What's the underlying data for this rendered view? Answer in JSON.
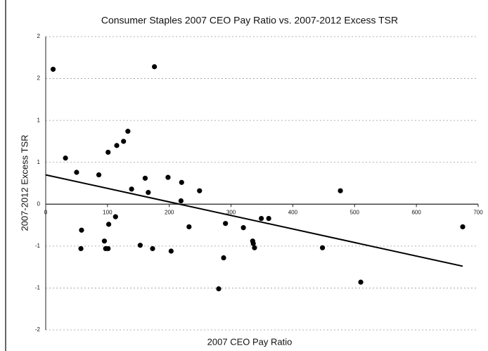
{
  "chart_data": {
    "type": "scatter",
    "title": "Consumer Staples 2007 CEO Pay Ratio vs. 2007-2012 Excess TSR",
    "x_label": "2007 CEO Pay Ratio",
    "y_label": "2007-2012 Excess TSR",
    "color": "#000000",
    "grid": true,
    "x": [
      12,
      176,
      32,
      50,
      101,
      115,
      126,
      133,
      86,
      139,
      161,
      166,
      198,
      220,
      219,
      249,
      477,
      58,
      57,
      95,
      102,
      113,
      97,
      101,
      153,
      173,
      203,
      232,
      291,
      288,
      280,
      320,
      335,
      336,
      338,
      349,
      361,
      448,
      510,
      675
    ],
    "values": [
      1.61,
      1.64,
      0.55,
      0.38,
      0.62,
      0.7,
      0.75,
      0.87,
      0.35,
      0.18,
      0.31,
      0.14,
      0.32,
      0.26,
      0.04,
      0.16,
      0.16,
      -0.31,
      -0.53,
      -0.44,
      -0.24,
      -0.15,
      -0.53,
      -0.53,
      -0.49,
      -0.53,
      -0.56,
      -0.27,
      -0.23,
      -0.64,
      -1.01,
      -0.28,
      -0.44,
      -0.47,
      -0.52,
      -0.17,
      -0.17,
      -0.52,
      -0.93,
      -0.27
    ],
    "trendline": {
      "x": [
        0,
        675
      ],
      "values": [
        0.35,
        -0.74
      ]
    },
    "xlim": [
      0,
      700
    ],
    "xticks": [
      0,
      100,
      200,
      300,
      400,
      500,
      600,
      700
    ],
    "ylim": [
      -1.5,
      2
    ],
    "yticks": [
      {
        "value": -1.5,
        "label": "-2"
      },
      {
        "value": -1,
        "label": "-1"
      },
      {
        "value": -0.5,
        "label": "-1"
      },
      0,
      {
        "value": 0.5,
        "label": "1"
      },
      1,
      {
        "value": 1.5,
        "label": "2"
      },
      2
    ]
  }
}
